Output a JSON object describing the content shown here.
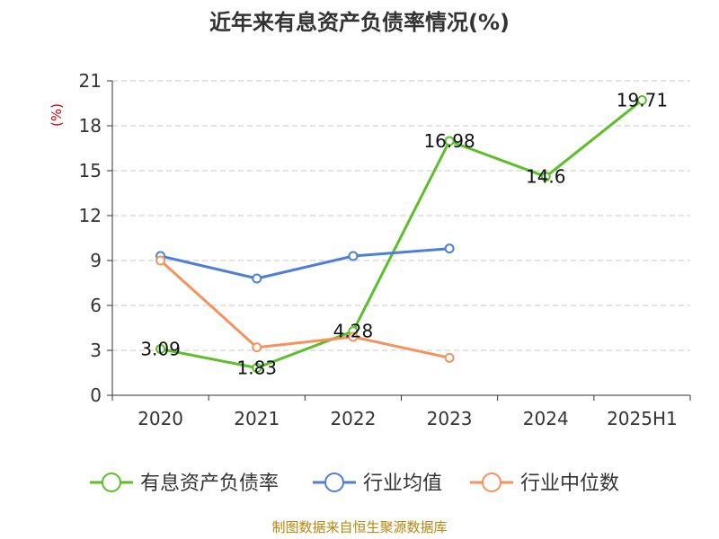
{
  "chart_data": {
    "type": "line",
    "title": "近年来有息资产负债率情况(%)",
    "ylabel": "(%)",
    "categories": [
      "2020",
      "2021",
      "2022",
      "2023",
      "2024",
      "2025H1"
    ],
    "ylim": [
      0,
      21
    ],
    "yticks": [
      0,
      3,
      6,
      9,
      12,
      15,
      18,
      21
    ],
    "grid": true,
    "legend_position": "bottom",
    "series": [
      {
        "name": "有息资产负债率",
        "color": "#5cbf2a",
        "values": [
          3.09,
          1.83,
          4.28,
          16.98,
          14.6,
          19.71
        ],
        "labels": [
          "3.09",
          "1.83",
          "4.28",
          "16.98",
          "14.6",
          "19.71"
        ]
      },
      {
        "name": "行业均值",
        "color": "#4e7fd8",
        "values": [
          9.3,
          7.8,
          9.3,
          9.8,
          null,
          null
        ]
      },
      {
        "name": "行业中位数",
        "color": "#f5925e",
        "values": [
          9.0,
          3.2,
          3.9,
          2.5,
          null,
          null
        ]
      }
    ],
    "source": "制图数据来自恒生聚源数据库"
  }
}
